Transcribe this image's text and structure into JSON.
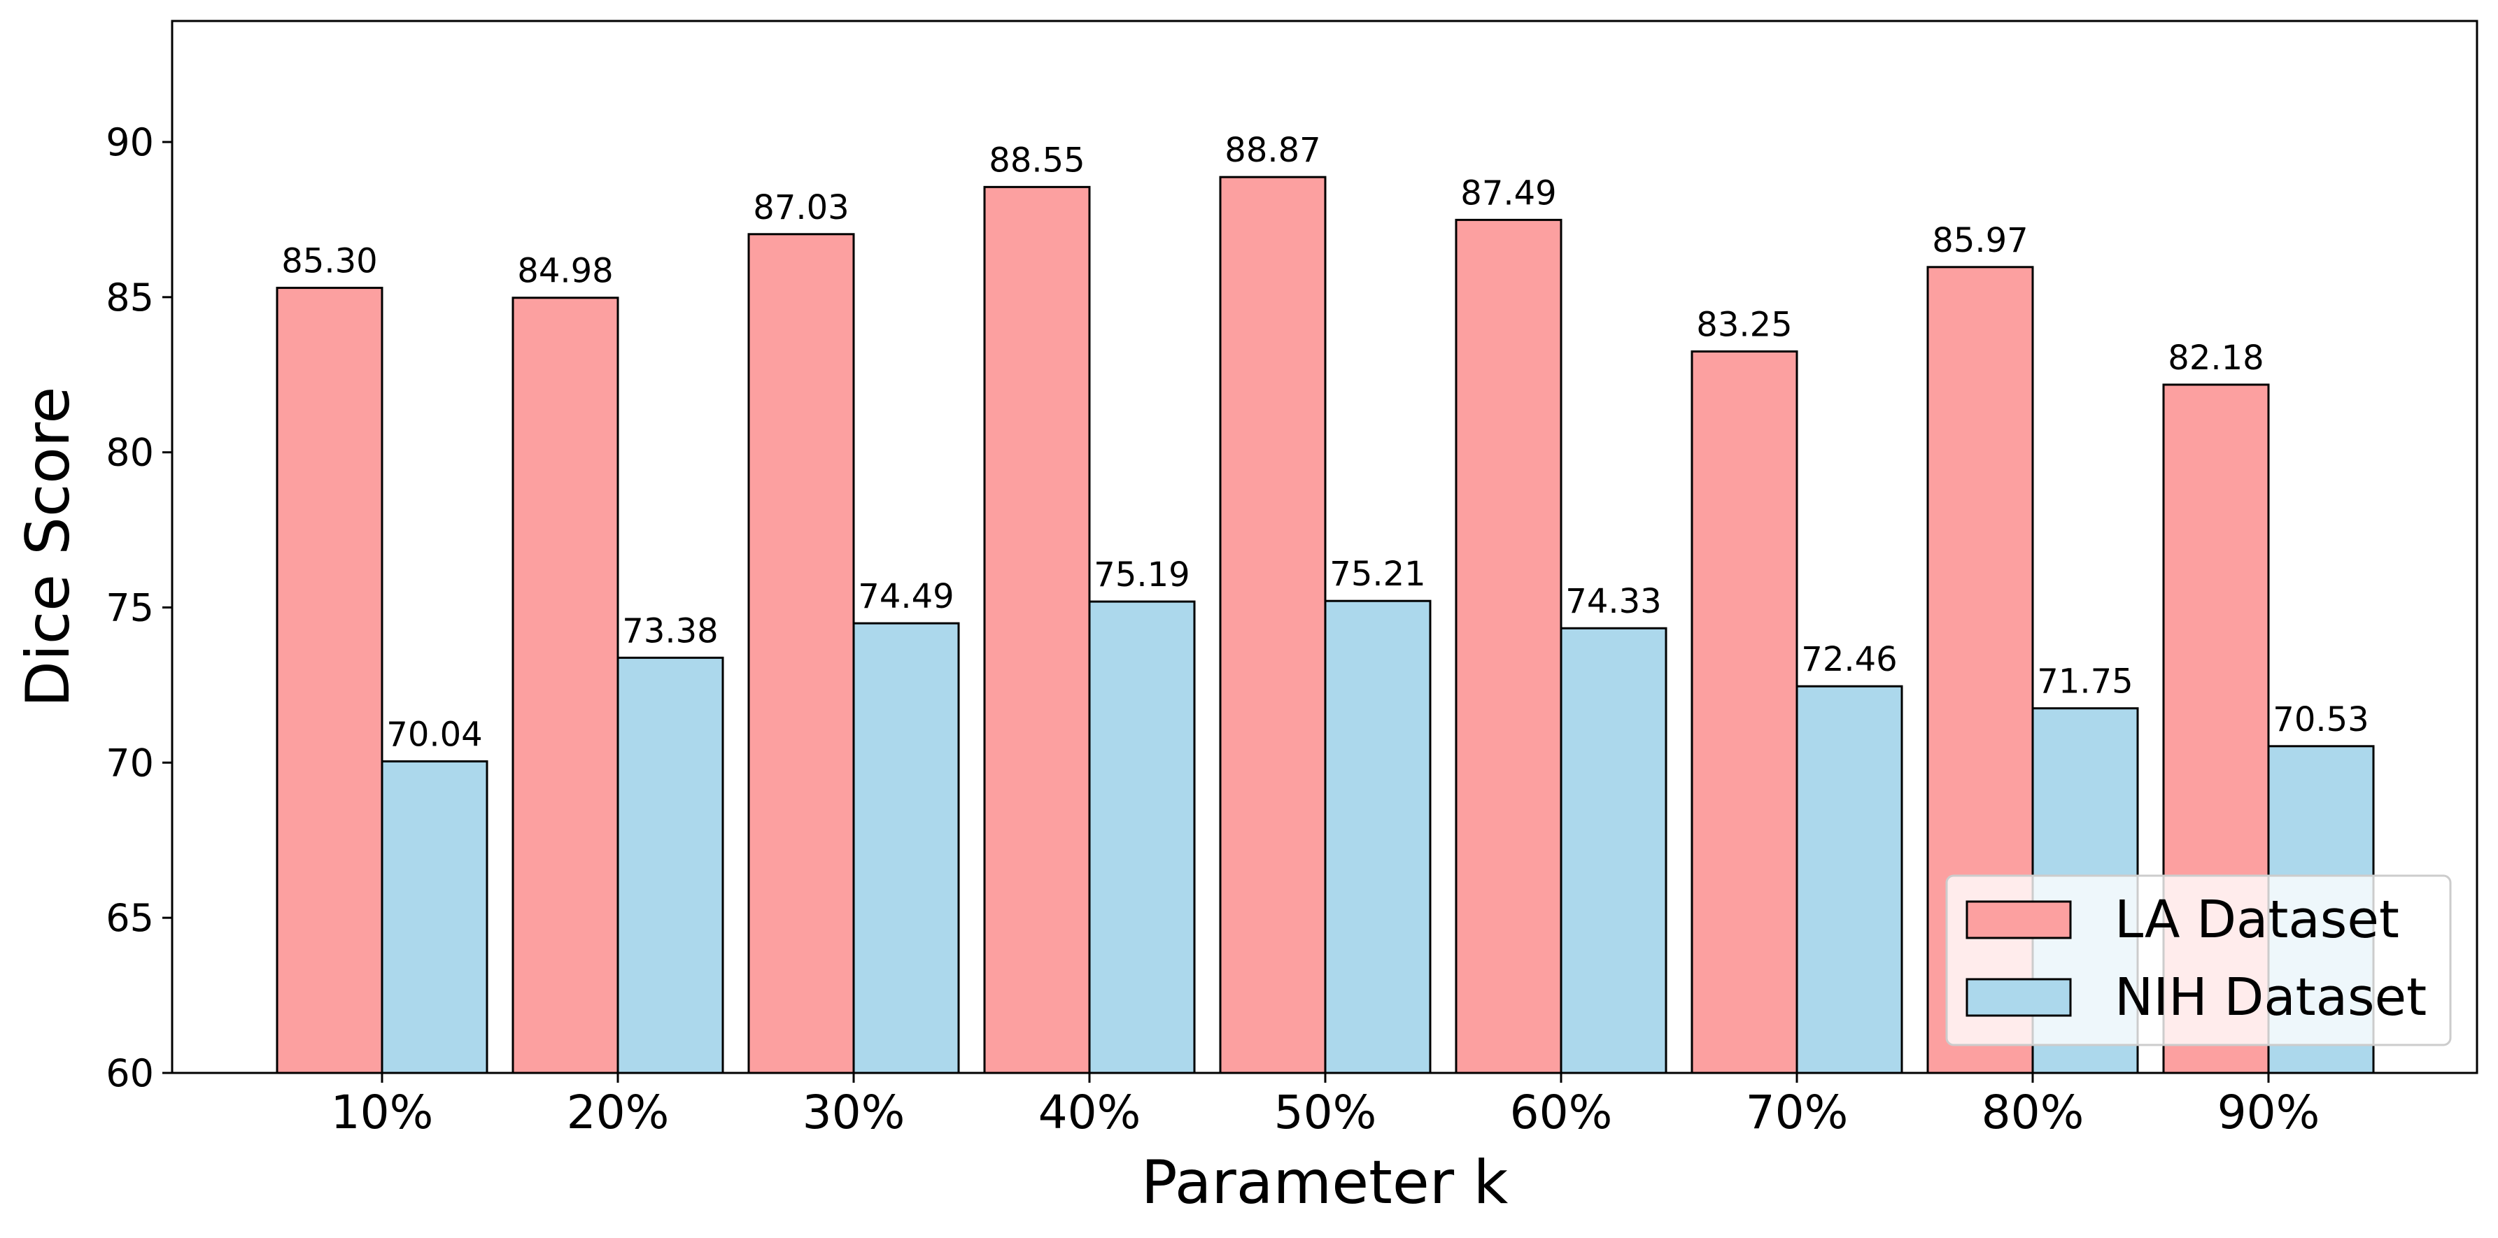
{
  "chart_data": {
    "type": "bar",
    "title": "",
    "xlabel": "Parameter k",
    "ylabel": "Dice Score",
    "categories": [
      "10%",
      "20%",
      "30%",
      "40%",
      "50%",
      "60%",
      "70%",
      "80%",
      "90%"
    ],
    "series": [
      {
        "name": "LA Dataset",
        "color": "#fca0a0",
        "values": [
          85.3,
          84.98,
          87.03,
          88.55,
          88.87,
          87.49,
          83.25,
          85.97,
          82.18
        ],
        "labels": [
          "85.30",
          "84.98",
          "87.03",
          "88.55",
          "88.87",
          "87.49",
          "83.25",
          "85.97",
          "82.18"
        ]
      },
      {
        "name": "NIH Dataset",
        "color": "#acd8ec",
        "values": [
          70.04,
          73.38,
          74.49,
          75.19,
          75.21,
          74.33,
          72.46,
          71.75,
          70.53
        ],
        "labels": [
          "70.04",
          "73.38",
          "74.49",
          "75.19",
          "75.21",
          "74.33",
          "72.46",
          "71.75",
          "70.53"
        ]
      }
    ],
    "ylim": [
      60,
      93.9
    ],
    "yticks": [
      "60",
      "65",
      "70",
      "75",
      "80",
      "85",
      "90"
    ],
    "grid": false,
    "legend_position": "bottom-right",
    "bar_edge_color": "#000000"
  }
}
